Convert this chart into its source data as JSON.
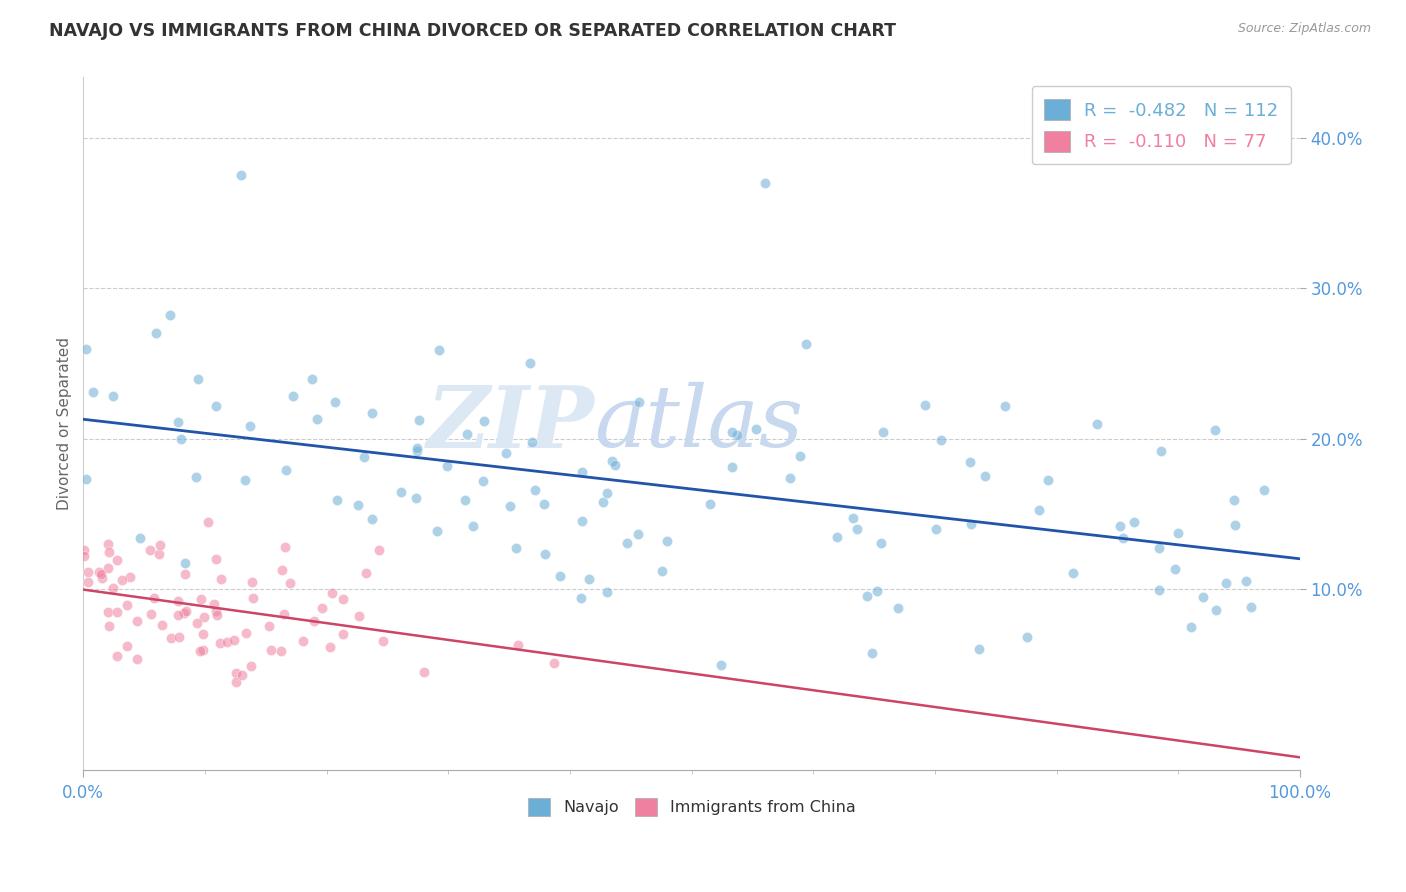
{
  "title": "NAVAJO VS IMMIGRANTS FROM CHINA DIVORCED OR SEPARATED CORRELATION CHART",
  "source_text": "Source: ZipAtlas.com",
  "ylabel": "Divorced or Separated",
  "xlabel": "",
  "xlim": [
    0,
    1
  ],
  "ylim": [
    -0.02,
    0.44
  ],
  "yticks": [
    0.1,
    0.2,
    0.3,
    0.4
  ],
  "ytick_labels": [
    "10.0%",
    "20.0%",
    "30.0%",
    "40.0%"
  ],
  "xtick_labels": [
    "0.0%",
    "100.0%"
  ],
  "legend_entries": [
    {
      "label": "R =  -0.482   N = 112",
      "color": "#6baed6"
    },
    {
      "label": "R =  -0.110   N = 77",
      "color": "#f080a0"
    }
  ],
  "bottom_legend": [
    {
      "label": "Navajo",
      "color": "#6baed6"
    },
    {
      "label": "Immigrants from China",
      "color": "#f080a0"
    }
  ],
  "navajo_color": "#6baed6",
  "china_color": "#f080a0",
  "navajo_line_color": "#2255aa",
  "china_line_color_solid": "#cc4466",
  "china_line_color_dashed": "#cc4466",
  "background_color": "#ffffff",
  "grid_color": "#cccccc",
  "title_color": "#333333",
  "axis_label_color": "#666666",
  "tick_label_color": "#5599dd",
  "watermark_zip": "ZIP",
  "watermark_atlas": "atlas",
  "watermark_color": "#dde8f5"
}
